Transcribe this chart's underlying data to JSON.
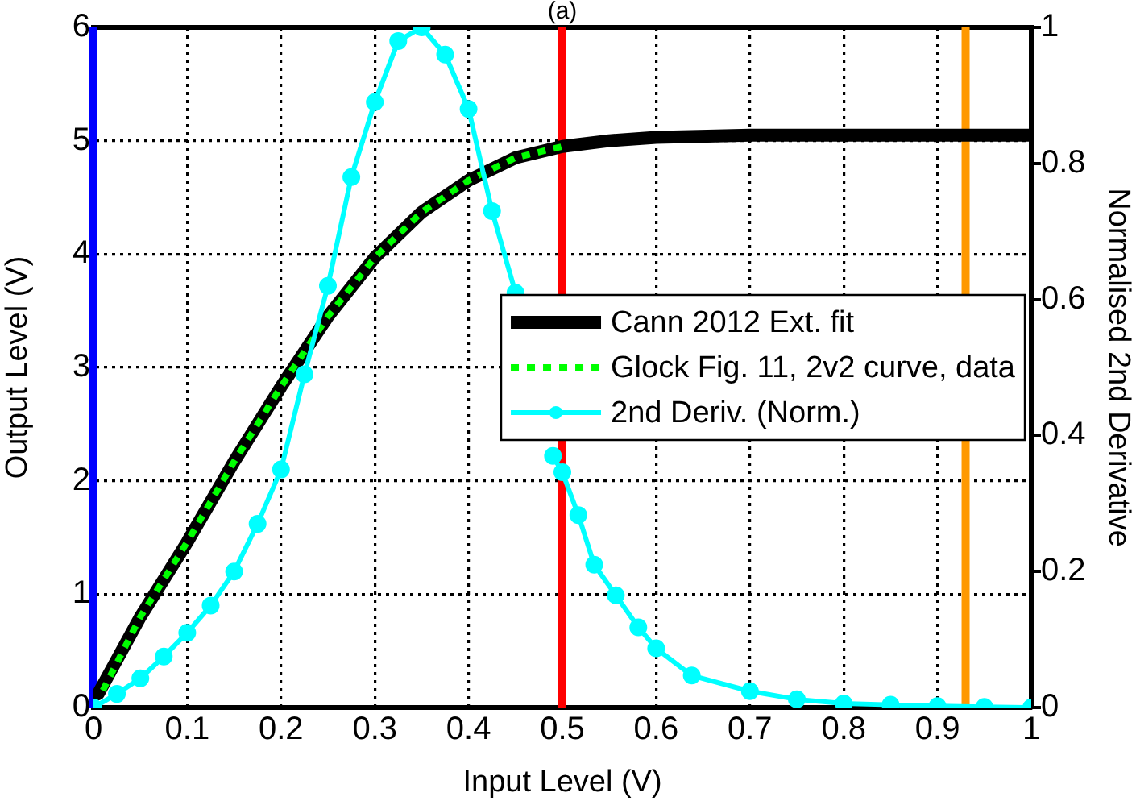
{
  "chart_data": {
    "type": "line",
    "title": "(a)",
    "xlabel": "Input Level (V)",
    "ylabel": "Output Level (V)",
    "y2label": "Normalised 2nd Derivative",
    "series": [
      {
        "name": "Cann 2012 Ext. fit",
        "color": "#000000",
        "line_style": "solid",
        "marker": "none",
        "x": [
          0.005,
          0.05,
          0.1,
          0.15,
          0.2,
          0.25,
          0.3,
          0.35,
          0.4,
          0.45,
          0.5,
          0.55,
          0.6,
          0.7,
          0.8,
          0.9,
          1
        ],
        "values": [
          0.12,
          0.8,
          1.46,
          2.17,
          2.83,
          3.45,
          3.97,
          4.37,
          4.65,
          4.85,
          4.95,
          5.0,
          5.03,
          5.05,
          5.05,
          5.05,
          5.05
        ]
      },
      {
        "name": "Glock Fig. 11, 2v2 curve, data",
        "color": "#00ff00",
        "line_style": "dotted",
        "marker": "none",
        "x": [
          0.01,
          0.05,
          0.1,
          0.15,
          0.2,
          0.25,
          0.3,
          0.35,
          0.4,
          0.45,
          0.5
        ],
        "values": [
          0.15,
          0.8,
          1.46,
          2.17,
          2.83,
          3.45,
          3.97,
          4.37,
          4.65,
          4.85,
          4.95
        ]
      },
      {
        "name": "2nd Deriv. (Norm.)",
        "color": "#00ffff",
        "axis": "y2",
        "line_style": "solid",
        "marker": "circle",
        "x": [
          0,
          0.025,
          0.05,
          0.075,
          0.1,
          0.125,
          0.15,
          0.175,
          0.2,
          0.225,
          0.25,
          0.275,
          0.3,
          0.325,
          0.35,
          0.375,
          0.4,
          0.425,
          0.45,
          0.47,
          0.49,
          0.5,
          0.517,
          0.534,
          0.557,
          0.581,
          0.6,
          0.638,
          0.7,
          0.75,
          0.8,
          0.85,
          0.9,
          0.95,
          1
        ],
        "values": [
          0,
          0.02,
          0.043,
          0.075,
          0.11,
          0.15,
          0.2,
          0.27,
          0.35,
          0.49,
          0.62,
          0.78,
          0.89,
          0.98,
          1.0,
          0.96,
          0.88,
          0.73,
          0.61,
          null,
          0.37,
          0.346,
          0.283,
          0.21,
          0.165,
          0.118,
          0.087,
          0.047,
          0.024,
          0.012,
          0.006,
          0.004,
          0.002,
          0.001,
          0
        ]
      }
    ],
    "xlim": [
      0,
      1
    ],
    "xticks": [
      0,
      0.1,
      0.2,
      0.3,
      0.4,
      0.5,
      0.6,
      0.7,
      0.8,
      0.9,
      1
    ],
    "ylim": [
      0,
      6
    ],
    "yticks": [
      0,
      1,
      2,
      3,
      4,
      5,
      6
    ],
    "y2lim": [
      0,
      1
    ],
    "y2ticks": [
      0,
      0.2,
      0.4,
      0.6,
      0.8,
      1
    ],
    "ref_lines": [
      {
        "axis": "x",
        "value": 0,
        "color": "#0000ff"
      },
      {
        "axis": "x",
        "value": 0.5,
        "color": "#ff0000"
      },
      {
        "axis": "x",
        "value": 0.93,
        "color": "#ff9900"
      }
    ],
    "grid": true,
    "legend": "right"
  }
}
